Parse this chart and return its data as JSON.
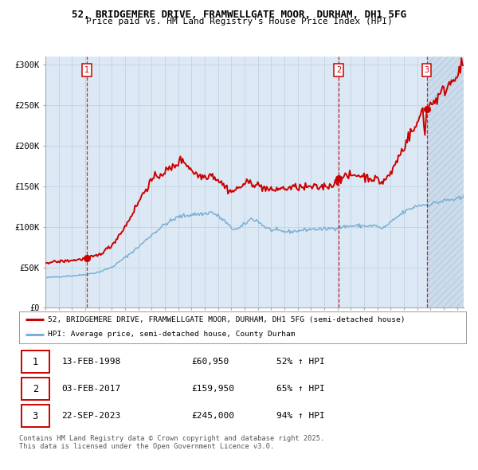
{
  "title_line1": "52, BRIDGEMERE DRIVE, FRAMWELLGATE MOOR, DURHAM, DH1 5FG",
  "title_line2": "Price paid vs. HM Land Registry's House Price Index (HPI)",
  "legend_line1": "52, BRIDGEMERE DRIVE, FRAMWELLGATE MOOR, DURHAM, DH1 5FG (semi-detached house)",
  "legend_line2": "HPI: Average price, semi-detached house, County Durham",
  "footer": "Contains HM Land Registry data © Crown copyright and database right 2025.\nThis data is licensed under the Open Government Licence v3.0.",
  "sale_color": "#cc0000",
  "hpi_color": "#7ab0d4",
  "vline_color": "#cc0000",
  "bg_color": "#dce9f5",
  "grid_color": "#b8cfe0",
  "purchases": [
    {
      "label": "1",
      "date_num": 1998.117,
      "price": 60950
    },
    {
      "label": "2",
      "date_num": 2017.083,
      "price": 159950
    },
    {
      "label": "3",
      "date_num": 2023.722,
      "price": 245000
    }
  ],
  "purchase_labels": [
    {
      "label": "1",
      "date": "13-FEB-1998",
      "price": "£60,950",
      "pct": "52% ↑ HPI"
    },
    {
      "label": "2",
      "date": "03-FEB-2017",
      "price": "£159,950",
      "pct": "65% ↑ HPI"
    },
    {
      "label": "3",
      "date": "22-SEP-2023",
      "price": "£245,000",
      "pct": "94% ↑ HPI"
    }
  ],
  "xmin": 1995.0,
  "xmax": 2026.5,
  "ymin": 0,
  "ymax": 310000,
  "yticks": [
    0,
    50000,
    100000,
    150000,
    200000,
    250000,
    300000
  ],
  "ytick_labels": [
    "£0",
    "£50K",
    "£100K",
    "£150K",
    "£200K",
    "£250K",
    "£300K"
  ],
  "hpi_waypoints": [
    [
      1995.0,
      37000
    ],
    [
      1996.0,
      38500
    ],
    [
      1997.0,
      39500
    ],
    [
      1998.0,
      41000
    ],
    [
      1999.0,
      44000
    ],
    [
      2000.0,
      50000
    ],
    [
      2001.0,
      62000
    ],
    [
      2002.0,
      75000
    ],
    [
      2003.0,
      90000
    ],
    [
      2004.0,
      103000
    ],
    [
      2005.0,
      112000
    ],
    [
      2006.0,
      115000
    ],
    [
      2007.0,
      116000
    ],
    [
      2007.5,
      118000
    ],
    [
      2008.0,
      113000
    ],
    [
      2008.5,
      107000
    ],
    [
      2009.0,
      98000
    ],
    [
      2009.5,
      97000
    ],
    [
      2010.0,
      103000
    ],
    [
      2010.5,
      110000
    ],
    [
      2011.0,
      107000
    ],
    [
      2011.5,
      100000
    ],
    [
      2012.0,
      96000
    ],
    [
      2012.5,
      95000
    ],
    [
      2013.0,
      94000
    ],
    [
      2013.5,
      94000
    ],
    [
      2014.0,
      95000
    ],
    [
      2014.5,
      96000
    ],
    [
      2015.0,
      97000
    ],
    [
      2015.5,
      97000
    ],
    [
      2016.0,
      97000
    ],
    [
      2016.5,
      98000
    ],
    [
      2017.0,
      99000
    ],
    [
      2017.5,
      100000
    ],
    [
      2018.0,
      101000
    ],
    [
      2018.5,
      101000
    ],
    [
      2019.0,
      101000
    ],
    [
      2019.5,
      101000
    ],
    [
      2020.0,
      101000
    ],
    [
      2020.3,
      97000
    ],
    [
      2020.5,
      99000
    ],
    [
      2021.0,
      105000
    ],
    [
      2021.5,
      112000
    ],
    [
      2022.0,
      118000
    ],
    [
      2022.5,
      122000
    ],
    [
      2023.0,
      126000
    ],
    [
      2023.5,
      127000
    ],
    [
      2024.0,
      128000
    ],
    [
      2024.5,
      130000
    ],
    [
      2025.0,
      132000
    ],
    [
      2025.5,
      133000
    ],
    [
      2026.5,
      135000
    ]
  ],
  "red_waypoints": [
    [
      1995.0,
      56000
    ],
    [
      1995.5,
      56500
    ],
    [
      1996.0,
      57000
    ],
    [
      1997.0,
      58500
    ],
    [
      1997.5,
      59500
    ],
    [
      1998.117,
      60950
    ],
    [
      1999.0,
      65000
    ],
    [
      2000.0,
      77000
    ],
    [
      2001.0,
      100000
    ],
    [
      2002.0,
      130000
    ],
    [
      2002.5,
      145000
    ],
    [
      2003.0,
      157000
    ],
    [
      2003.5,
      163000
    ],
    [
      2004.0,
      168000
    ],
    [
      2004.5,
      172000
    ],
    [
      2005.0,
      179000
    ],
    [
      2005.3,
      183000
    ],
    [
      2005.5,
      180000
    ],
    [
      2006.0,
      170000
    ],
    [
      2006.5,
      163000
    ],
    [
      2007.0,
      162000
    ],
    [
      2007.5,
      165000
    ],
    [
      2008.0,
      158000
    ],
    [
      2008.5,
      150000
    ],
    [
      2009.0,
      143000
    ],
    [
      2009.5,
      147000
    ],
    [
      2010.0,
      153000
    ],
    [
      2010.5,
      155000
    ],
    [
      2011.0,
      151000
    ],
    [
      2011.5,
      148000
    ],
    [
      2012.0,
      144000
    ],
    [
      2012.5,
      147000
    ],
    [
      2013.0,
      147000
    ],
    [
      2013.5,
      148000
    ],
    [
      2014.0,
      149000
    ],
    [
      2014.5,
      148000
    ],
    [
      2015.0,
      149000
    ],
    [
      2015.5,
      148000
    ],
    [
      2016.0,
      150000
    ],
    [
      2016.5,
      151000
    ],
    [
      2017.0,
      155000
    ],
    [
      2017.083,
      159950
    ],
    [
      2017.5,
      161000
    ],
    [
      2018.0,
      163000
    ],
    [
      2018.5,
      164000
    ],
    [
      2019.0,
      162000
    ],
    [
      2019.5,
      160000
    ],
    [
      2020.0,
      158000
    ],
    [
      2020.3,
      154000
    ],
    [
      2020.5,
      157000
    ],
    [
      2021.0,
      165000
    ],
    [
      2021.5,
      183000
    ],
    [
      2022.0,
      198000
    ],
    [
      2022.3,
      210000
    ],
    [
      2022.5,
      215000
    ],
    [
      2023.0,
      225000
    ],
    [
      2023.4,
      248000
    ],
    [
      2023.6,
      215000
    ],
    [
      2023.722,
      245000
    ],
    [
      2024.0,
      252000
    ],
    [
      2024.5,
      258000
    ],
    [
      2025.0,
      268000
    ],
    [
      2025.5,
      278000
    ],
    [
      2026.0,
      290000
    ],
    [
      2026.5,
      298000
    ]
  ],
  "hatch_start": 2023.722
}
